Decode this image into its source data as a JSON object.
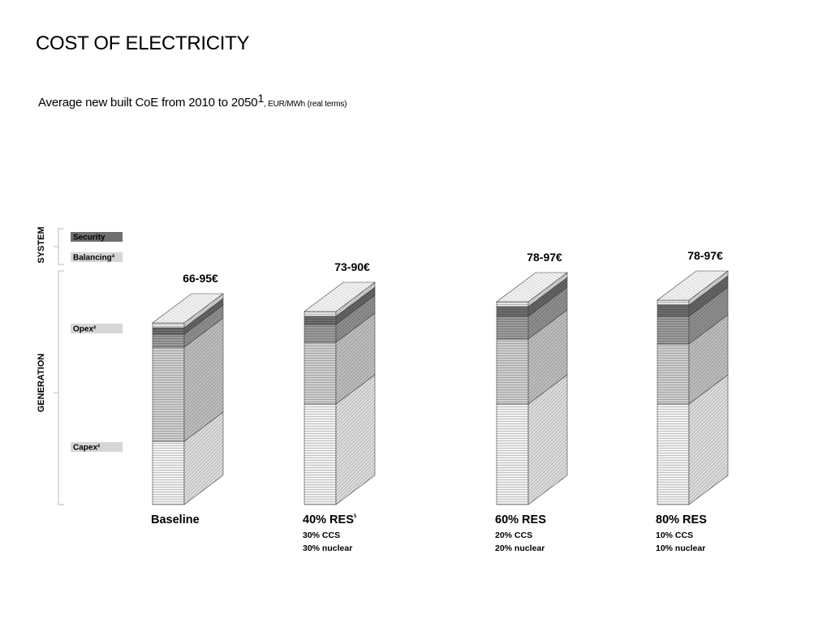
{
  "title": "COST OF ELECTRICITY",
  "subtitle": {
    "main": "Average new built CoE from 2010 to 2050",
    "footnote": "1",
    "unit": ", EUR/MWh (real terms)"
  },
  "chart_data": {
    "type": "bar",
    "stacked": true,
    "style": "3d",
    "categories": [
      "Baseline",
      "40% RES",
      "60% RES",
      "80% RES"
    ],
    "category_footnotes": [
      "",
      "5",
      "",
      ""
    ],
    "category_sublabels": [
      [],
      [
        "30% CCS",
        "30% nuclear"
      ],
      [
        "20% CCS",
        "20% nuclear"
      ],
      [
        "10% CCS",
        "10% nuclear"
      ]
    ],
    "totals": [
      "66-95€",
      "73-90€",
      "78-97€",
      "78-97€"
    ],
    "series": [
      {
        "name": "Capex²",
        "values": [
          39,
          62,
          62,
          62
        ]
      },
      {
        "name": "Opex²",
        "values": [
          58,
          38,
          40,
          37
        ]
      },
      {
        "name": "Balancing³",
        "values": [
          8,
          11,
          14,
          17
        ]
      },
      {
        "name": "Security",
        "values": [
          4,
          5,
          6,
          7
        ]
      },
      {
        "name": "",
        "values": [
          3,
          3,
          3,
          3
        ]
      }
    ],
    "groups": [
      {
        "name": "SYSTEM",
        "members": [
          "Security",
          "Balancing³"
        ]
      },
      {
        "name": "GENERATION",
        "members": [
          "Opex²",
          "Capex²"
        ]
      }
    ],
    "legend": [
      "Security",
      "Balancing³",
      "Opex²",
      "Capex²"
    ],
    "colors": {
      "Capex²": "#f2f2f2",
      "Opex²": "#cfcfcf",
      "Balancing³": "#9c9c9c",
      "Security": "#6e6e6e",
      "cap": "#e6e6e6",
      "legend_dark": "#6f6f6f",
      "legend_light": "#d6d6d6"
    },
    "xlabel": "",
    "ylabel": "",
    "grid": false
  }
}
